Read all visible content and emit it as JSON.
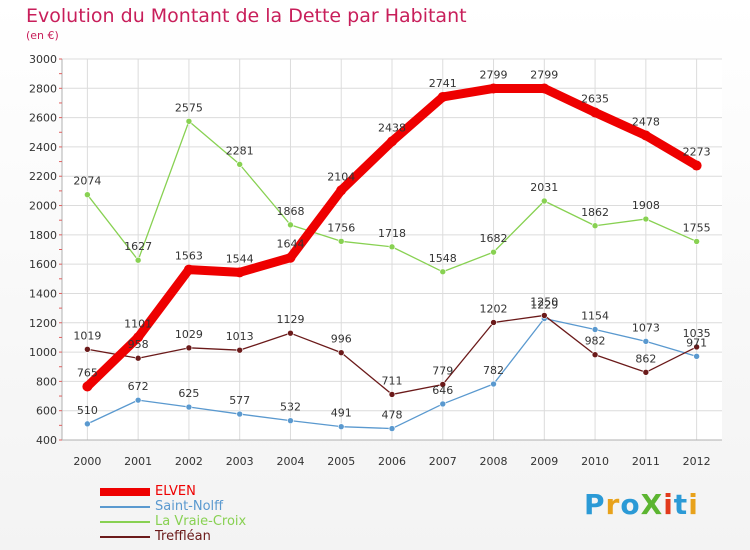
{
  "title": "Evolution du Montant de la Dette par Habitant",
  "subtitle": "(en €)",
  "logo_text": "ProXiti",
  "chart_data": {
    "type": "line",
    "title": "Evolution du Montant de la Dette par Habitant",
    "subtitle": "(en €)",
    "categories": [
      "2000",
      "2001",
      "2002",
      "2003",
      "2004",
      "2005",
      "2006",
      "2007",
      "2008",
      "2009",
      "2010",
      "2011",
      "2012"
    ],
    "ylim": [
      400,
      3000
    ],
    "yticks": [
      400,
      600,
      800,
      1000,
      1200,
      1400,
      1600,
      1800,
      2000,
      2200,
      2400,
      2600,
      2800,
      3000
    ],
    "grid": true,
    "legend_position": "bottom-left",
    "series": [
      {
        "name": "ELVEN",
        "color": "#ee0000",
        "values": [
          765,
          1101,
          1563,
          1544,
          1644,
          2104,
          2438,
          2741,
          2799,
          2799,
          2635,
          2478,
          2273
        ]
      },
      {
        "name": "Saint-Nolff",
        "color": "#5a99cf",
        "values": [
          510,
          672,
          625,
          577,
          532,
          491,
          478,
          646,
          782,
          1229,
          1154,
          1073,
          971
        ]
      },
      {
        "name": "La Vraie-Croix",
        "color": "#88d152",
        "values": [
          2074,
          1627,
          2575,
          2281,
          1868,
          1756,
          1718,
          1548,
          1682,
          2031,
          1862,
          1908,
          1755
        ]
      },
      {
        "name": "Treffléan",
        "color": "#6b1a1a",
        "values": [
          1019,
          958,
          1029,
          1013,
          1129,
          996,
          711,
          779,
          1202,
          1250,
          982,
          862,
          1035
        ]
      }
    ]
  }
}
